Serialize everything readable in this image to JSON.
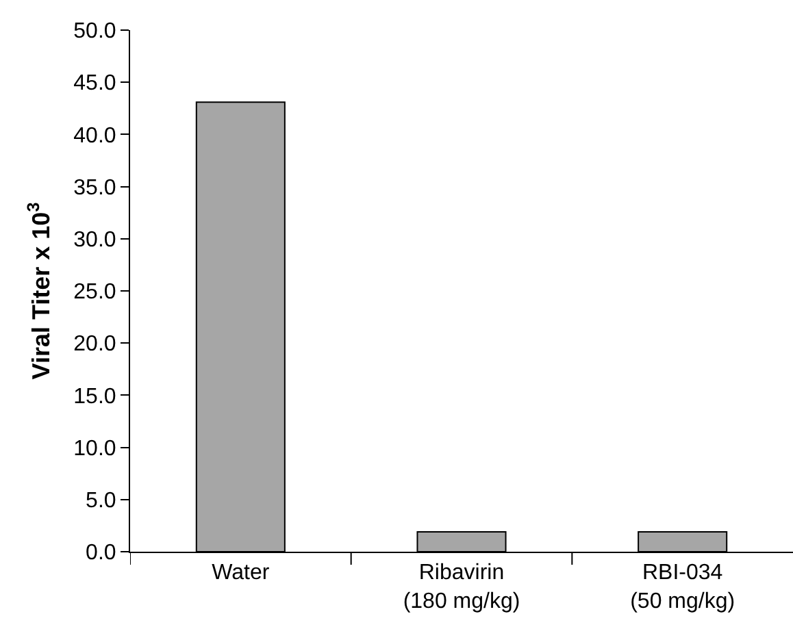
{
  "chart_data": {
    "type": "bar",
    "ylabel": "Viral Titer x 10$^{3}$",
    "categories": [
      "Water",
      "Ribavirin\n(180 mg/kg)",
      "RBI-034\n(50 mg/kg)"
    ],
    "values": [
      43.1,
      1.9,
      1.9
    ],
    "color": "#a6a6a6",
    "ylim": [
      0,
      50
    ],
    "yticks": [
      {
        "value": 0,
        "label": "0.0"
      },
      {
        "value": 5,
        "label": "5.0"
      },
      {
        "value": 10,
        "label": "10.0"
      },
      {
        "value": 15,
        "label": "15.0"
      },
      {
        "value": 20,
        "label": "20.0"
      },
      {
        "value": 25,
        "label": "25.0"
      },
      {
        "value": 30,
        "label": "30.0"
      },
      {
        "value": 35,
        "label": "35.0"
      },
      {
        "value": 40,
        "label": "40.0"
      },
      {
        "value": 45,
        "label": "45.0"
      },
      {
        "value": 50,
        "label": "50.0"
      }
    ],
    "grid": false
  }
}
